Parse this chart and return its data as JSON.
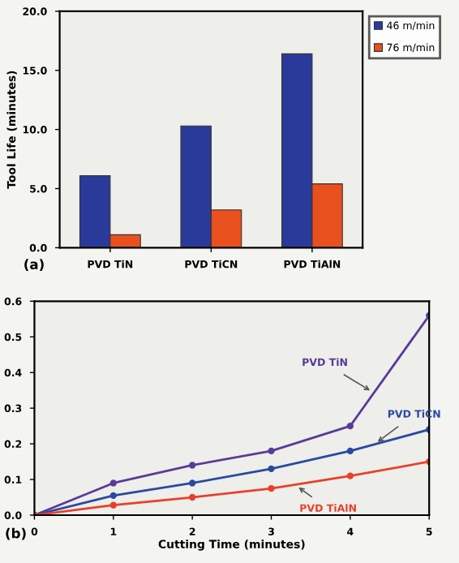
{
  "chart_data": [
    {
      "type": "bar",
      "ylabel": "Tool Life (minutes)",
      "categories": [
        "PVD TiN",
        "PVD TiCN",
        "PVD TiAlN"
      ],
      "series": [
        {
          "name": "46 m/min",
          "color": "#2a3a9a",
          "values": [
            6.1,
            10.3,
            16.4
          ]
        },
        {
          "name": "76 m/min",
          "color": "#e8501e",
          "values": [
            1.1,
            3.2,
            5.4
          ]
        }
      ],
      "ylim": [
        0,
        20
      ],
      "yticks": [
        {
          "value": 0,
          "label": "0.0"
        },
        {
          "value": 5,
          "label": "5.0"
        },
        {
          "value": 10,
          "label": "10.0"
        },
        {
          "value": 15,
          "label": "15.0"
        },
        {
          "value": 20,
          "label": "20.0"
        }
      ],
      "legend": "top right",
      "annotations": [
        "(a)"
      ]
    },
    {
      "type": "line",
      "xlabel": "Cutting Time (minutes)",
      "x": [
        0,
        1,
        2,
        3,
        4,
        5
      ],
      "series": [
        {
          "name": "PVD TiN",
          "color": "#5a3a9a",
          "values": [
            0,
            0.09,
            0.14,
            0.18,
            0.25,
            0.56
          ]
        },
        {
          "name": "PVD TiCN",
          "color": "#2a4aa0",
          "values": [
            0,
            0.055,
            0.09,
            0.13,
            0.18,
            0.24
          ]
        },
        {
          "name": "PVD TiAlN",
          "color": "#e8402a",
          "values": [
            0,
            0.028,
            0.05,
            0.075,
            0.11,
            0.15
          ]
        }
      ],
      "xlim": [
        0,
        5
      ],
      "xticks": [
        0,
        1,
        2,
        3,
        4,
        5
      ],
      "ylim": [
        0,
        0.6
      ],
      "yticks": [
        {
          "value": 0,
          "label": "0.0"
        },
        0.1,
        0.2,
        0.3,
        0.4,
        0.5,
        0.6
      ],
      "marker": "circle",
      "legend": false,
      "annotations": [
        "(b)"
      ]
    }
  ]
}
